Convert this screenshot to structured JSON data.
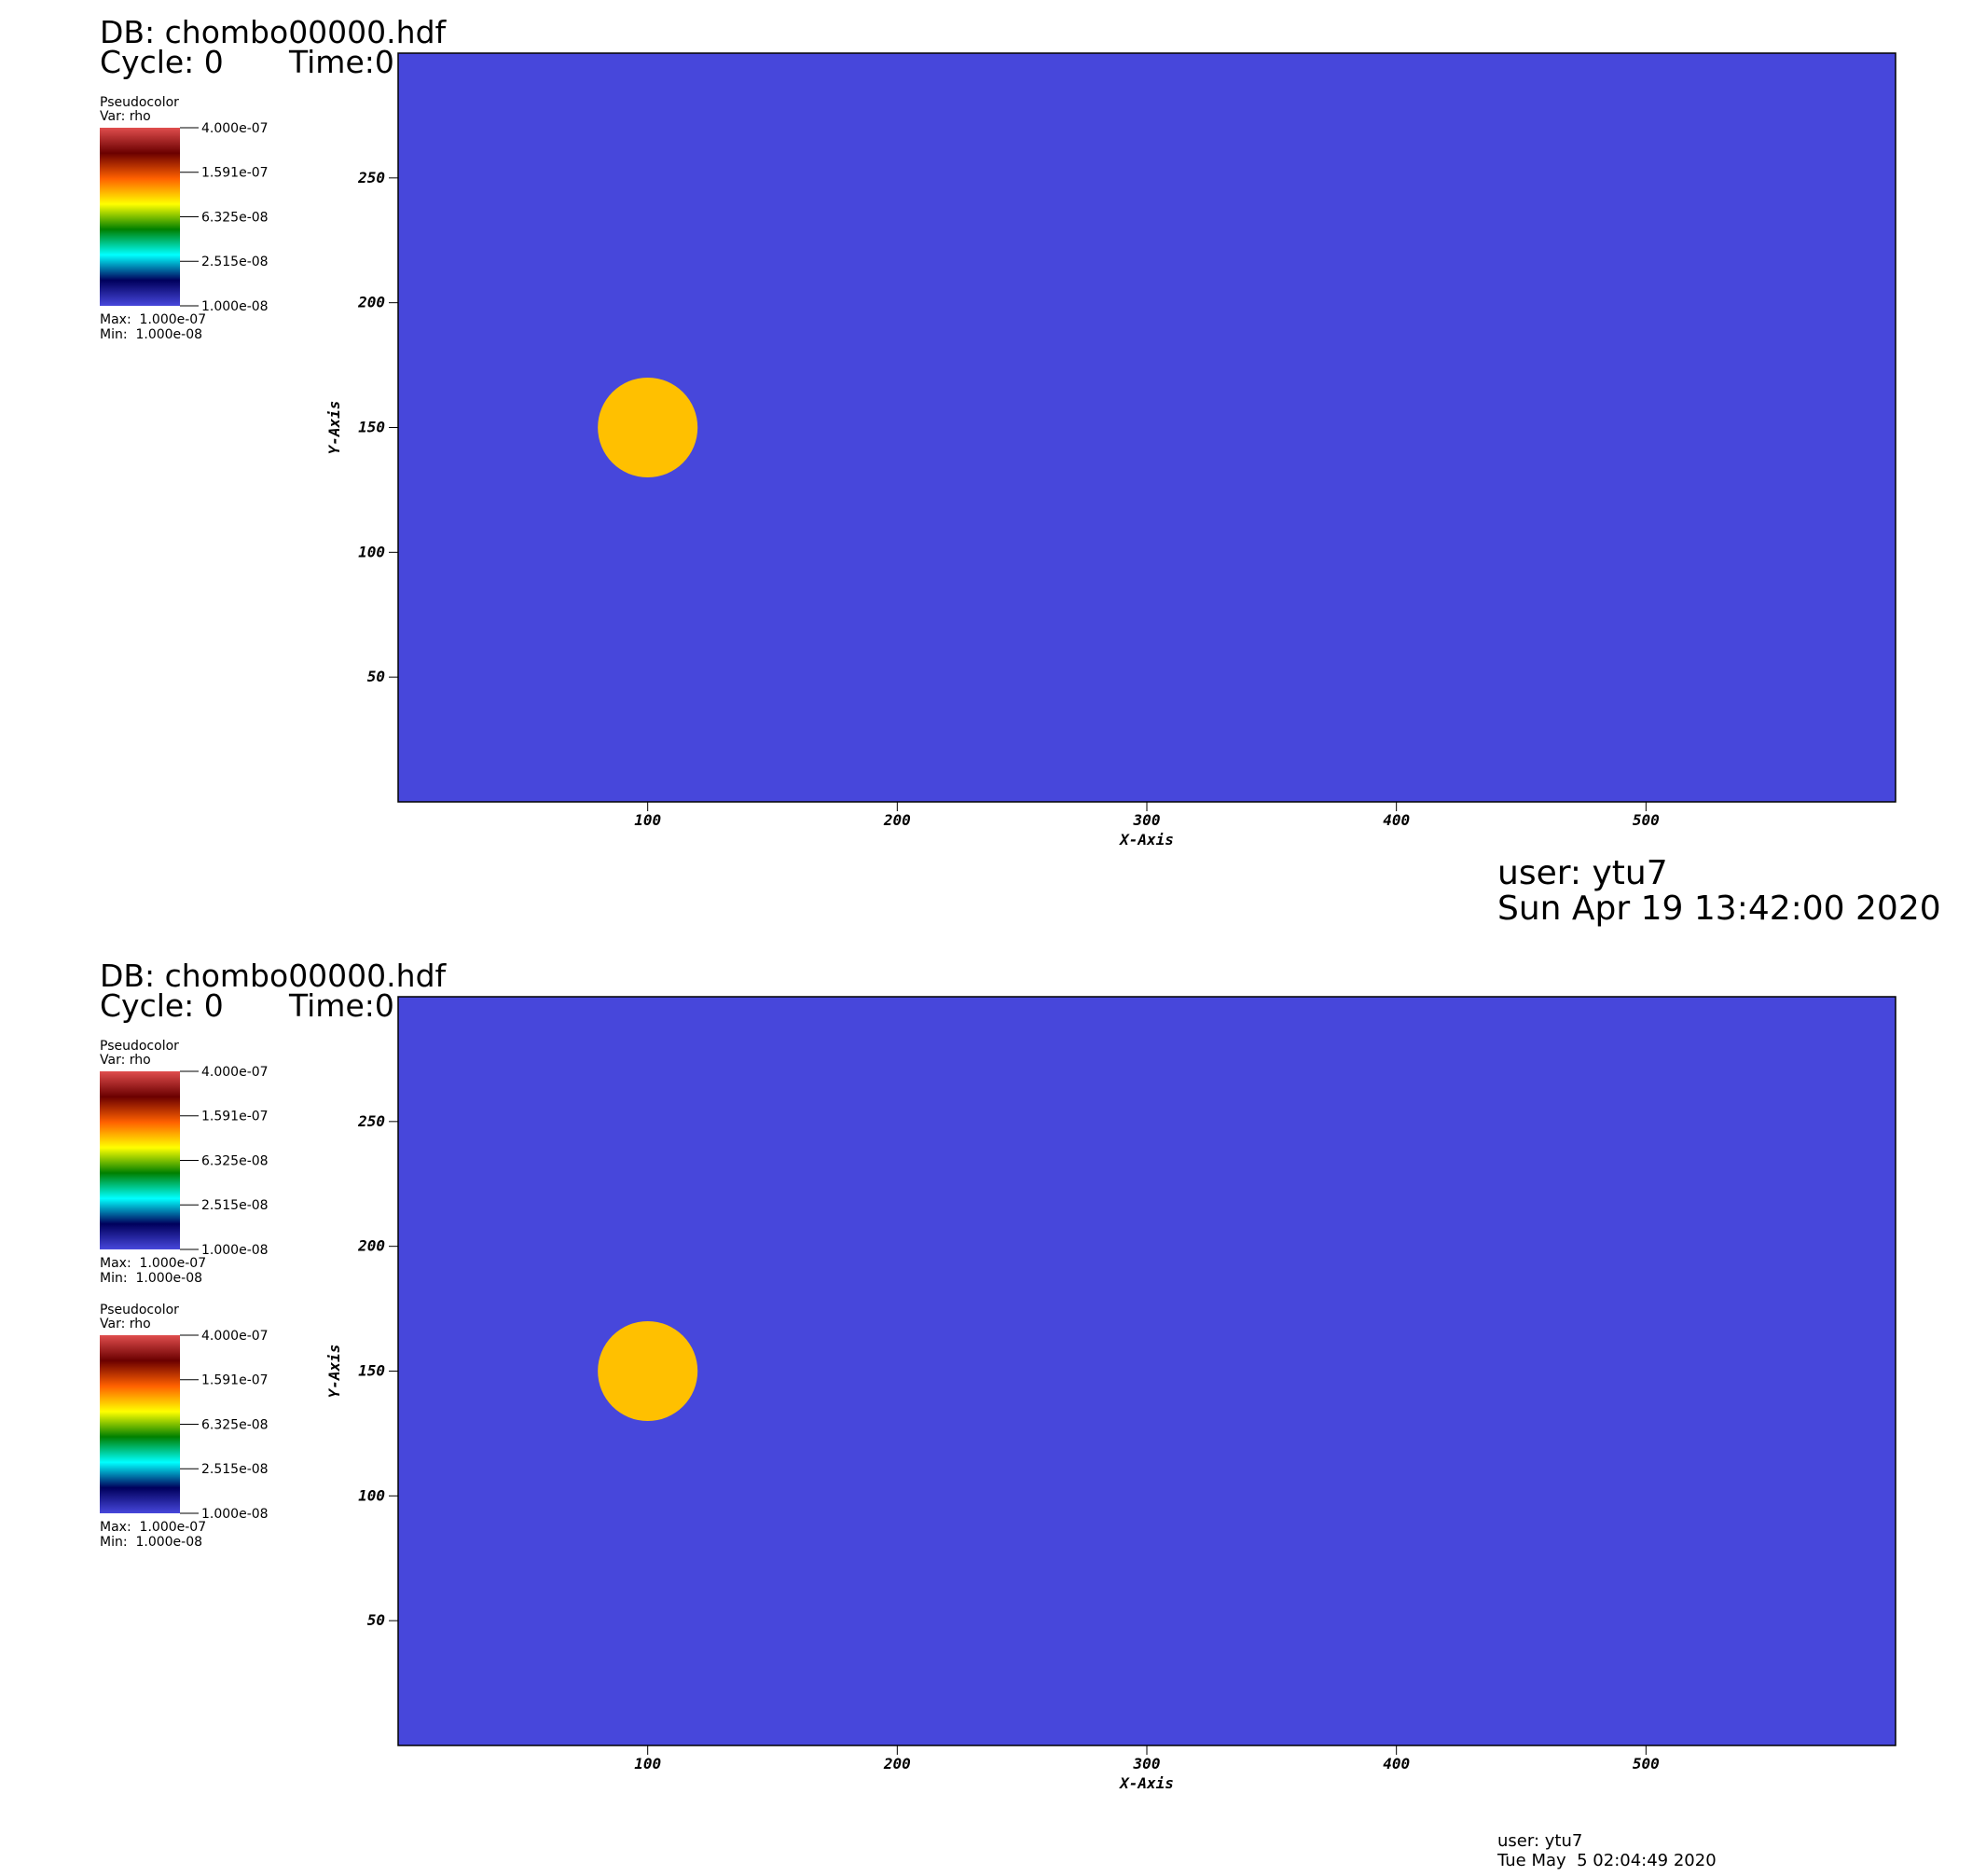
{
  "chart_data": [
    {
      "type": "pseudocolor",
      "db": "DB: chombo00000.hdf",
      "cycle": "Cycle: 0",
      "time": "Time:0",
      "xlabel": "X-Axis",
      "ylabel": "Y-Axis",
      "xlim": [
        0,
        600
      ],
      "xticks": [
        100,
        200,
        300,
        400,
        500
      ],
      "ylim": [
        0,
        300
      ],
      "yticks": [
        50,
        100,
        150,
        200,
        250
      ],
      "field_color": "#4747db",
      "circle": {
        "x": 100,
        "y": 150,
        "r": 20,
        "color": "#ffc000"
      },
      "legends": [
        {
          "title": "Pseudocolor",
          "var": "Var: rho",
          "scale": "log",
          "lim": [
            1e-08,
            4e-07
          ],
          "ticks": [
            {
              "value": 4e-07,
              "label": "4.000e-07"
            },
            {
              "value": 1.591e-07,
              "label": "1.591e-07"
            },
            {
              "value": 6.325e-08,
              "label": "6.325e-08"
            },
            {
              "value": 2.515e-08,
              "label": "2.515e-08"
            },
            {
              "value": 1e-08,
              "label": "1.000e-08"
            }
          ],
          "max": "Max:  1.000e-07",
          "min": "Min:  1.000e-08"
        }
      ],
      "user": "user: ytu7",
      "date": "Sun Apr 19 13:42:00 2020"
    },
    {
      "type": "pseudocolor",
      "db": "DB: chombo00000.hdf",
      "cycle": "Cycle: 0",
      "time": "Time:0",
      "xlabel": "X-Axis",
      "ylabel": "Y-Axis",
      "xlim": [
        0,
        600
      ],
      "xticks": [
        100,
        200,
        300,
        400,
        500
      ],
      "ylim": [
        0,
        300
      ],
      "yticks": [
        50,
        100,
        150,
        200,
        250
      ],
      "field_color": "#4747db",
      "circle": {
        "x": 100,
        "y": 150,
        "r": 20,
        "color": "#ffc000"
      },
      "legends": [
        {
          "title": "Pseudocolor",
          "var": "Var: rho",
          "scale": "log",
          "lim": [
            1e-08,
            4e-07
          ],
          "ticks": [
            {
              "value": 4e-07,
              "label": "4.000e-07"
            },
            {
              "value": 1.591e-07,
              "label": "1.591e-07"
            },
            {
              "value": 6.325e-08,
              "label": "6.325e-08"
            },
            {
              "value": 2.515e-08,
              "label": "2.515e-08"
            },
            {
              "value": 1e-08,
              "label": "1.000e-08"
            }
          ],
          "max": "Max:  1.000e-07",
          "min": "Min:  1.000e-08"
        },
        {
          "title": "Pseudocolor",
          "var": "Var: rho",
          "scale": "log",
          "lim": [
            1e-08,
            4e-07
          ],
          "ticks": [
            {
              "value": 4e-07,
              "label": "4.000e-07"
            },
            {
              "value": 1.591e-07,
              "label": "1.591e-07"
            },
            {
              "value": 6.325e-08,
              "label": "6.325e-08"
            },
            {
              "value": 2.515e-08,
              "label": "2.515e-08"
            },
            {
              "value": 1e-08,
              "label": "1.000e-08"
            }
          ],
          "max": "Max:  1.000e-07",
          "min": "Min:  1.000e-08"
        }
      ],
      "user": "user: ytu7",
      "date": "Tue May  5 02:04:49 2020"
    }
  ]
}
